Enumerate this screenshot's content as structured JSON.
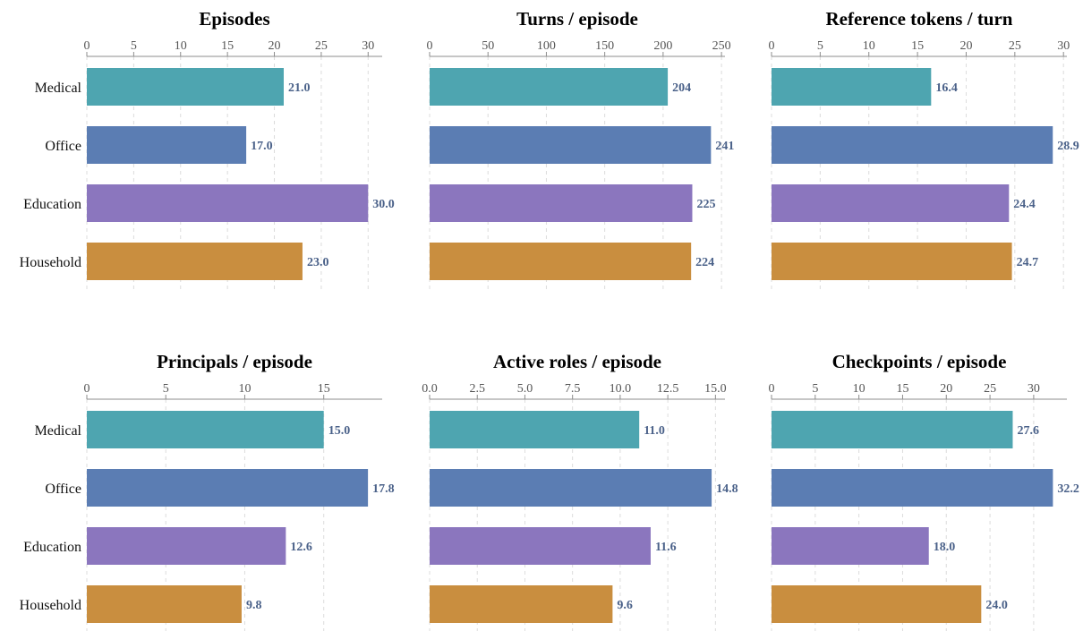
{
  "figure": {
    "categories": [
      "Medical",
      "Office",
      "Education",
      "Household"
    ],
    "category_colors": [
      "#4ea5b0",
      "#5b7db3",
      "#8b76be",
      "#c98e3f"
    ],
    "value_label_color": "#4a6189"
  },
  "chart_data": [
    {
      "type": "bar",
      "orientation": "horizontal",
      "title": "Episodes",
      "categories": [
        "Medical",
        "Office",
        "Education",
        "Household"
      ],
      "values": [
        21.0,
        17.0,
        30.0,
        23.0
      ],
      "value_labels": [
        "21.0",
        "17.0",
        "30.0",
        "23.0"
      ],
      "ticks": [
        0,
        5,
        10,
        15,
        20,
        25,
        30
      ],
      "tick_labels": [
        "0",
        "5",
        "10",
        "15",
        "20",
        "25",
        "30"
      ],
      "xlim": [
        0,
        31.5
      ],
      "axis_position": "top",
      "grid": true
    },
    {
      "type": "bar",
      "orientation": "horizontal",
      "title": "Turns / episode",
      "categories": [
        "Medical",
        "Office",
        "Education",
        "Household"
      ],
      "values": [
        204,
        241,
        225,
        224
      ],
      "value_labels": [
        "204",
        "241",
        "225",
        "224"
      ],
      "ticks": [
        0,
        50,
        100,
        150,
        200,
        250
      ],
      "tick_labels": [
        "0",
        "50",
        "100",
        "150",
        "200",
        "250"
      ],
      "xlim": [
        0,
        253
      ],
      "axis_position": "top",
      "grid": true
    },
    {
      "type": "bar",
      "orientation": "horizontal",
      "title": "Reference tokens / turn",
      "categories": [
        "Medical",
        "Office",
        "Education",
        "Household"
      ],
      "values": [
        16.4,
        28.9,
        24.4,
        24.7
      ],
      "value_labels": [
        "16.4",
        "28.9",
        "24.4",
        "24.7"
      ],
      "ticks": [
        0,
        5,
        10,
        15,
        20,
        25,
        30
      ],
      "tick_labels": [
        "0",
        "5",
        "10",
        "15",
        "20",
        "25",
        "30"
      ],
      "xlim": [
        0,
        30.35
      ],
      "axis_position": "top",
      "grid": true
    },
    {
      "type": "bar",
      "orientation": "horizontal",
      "title": "Principals / episode",
      "categories": [
        "Medical",
        "Office",
        "Education",
        "Household"
      ],
      "values": [
        15.0,
        17.8,
        12.6,
        9.8
      ],
      "value_labels": [
        "15.0",
        "17.8",
        "12.6",
        "9.8"
      ],
      "ticks": [
        0,
        5,
        10,
        15
      ],
      "tick_labels": [
        "0",
        "5",
        "10",
        "15"
      ],
      "xlim": [
        0,
        18.7
      ],
      "axis_position": "top",
      "grid": true
    },
    {
      "type": "bar",
      "orientation": "horizontal",
      "title": "Active roles / episode",
      "categories": [
        "Medical",
        "Office",
        "Education",
        "Household"
      ],
      "values": [
        11.0,
        14.8,
        11.6,
        9.6
      ],
      "value_labels": [
        "11.0",
        "14.8",
        "11.6",
        "9.6"
      ],
      "ticks": [
        0,
        2.5,
        5,
        7.5,
        10,
        12.5,
        15
      ],
      "tick_labels": [
        "0.0",
        "2.5",
        "5.0",
        "7.5",
        "10.0",
        "12.5",
        "15.0"
      ],
      "xlim": [
        0,
        15.5
      ],
      "axis_position": "top",
      "grid": true
    },
    {
      "type": "bar",
      "orientation": "horizontal",
      "title": "Checkpoints / episode",
      "categories": [
        "Medical",
        "Office",
        "Education",
        "Household"
      ],
      "values": [
        27.6,
        32.2,
        18.0,
        24.0
      ],
      "value_labels": [
        "27.6",
        "32.2",
        "18.0",
        "24.0"
      ],
      "ticks": [
        0,
        5,
        10,
        15,
        20,
        25,
        30
      ],
      "tick_labels": [
        "0",
        "5",
        "10",
        "15",
        "20",
        "25",
        "30"
      ],
      "xlim": [
        0,
        33.8
      ],
      "axis_position": "top",
      "grid": true
    }
  ]
}
